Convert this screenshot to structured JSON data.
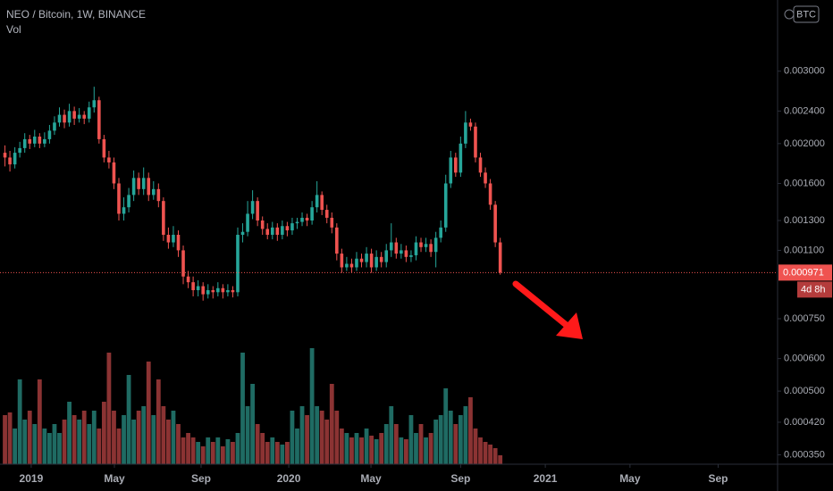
{
  "chart_data": {
    "type": "candlestick",
    "title": "NEO / Bitcoin, 1W, BINANCE",
    "volume_label": "Vol",
    "currency": "BTC",
    "countdown": "4d 8h",
    "last_price": 0.000971,
    "log_scale": true,
    "up_color": "#26a69a",
    "down_color": "#ef5350",
    "volume_up_color": "#1f6b63",
    "volume_down_color": "#8b3333",
    "ylim": [
      0.000332,
      0.00447
    ],
    "yticks": [
      {
        "value": 0.003,
        "label": "0.003000"
      },
      {
        "value": 0.0024,
        "label": "0.002400"
      },
      {
        "value": 0.002,
        "label": "0.002000"
      },
      {
        "value": 0.0016,
        "label": "0.001600"
      },
      {
        "value": 0.0013,
        "label": "0.001300"
      },
      {
        "value": 0.0011,
        "label": "0.001100"
      },
      {
        "value": 0.00075,
        "label": "0.000750"
      },
      {
        "value": 0.0006,
        "label": "0.000600"
      },
      {
        "value": 0.0005,
        "label": "0.000500"
      },
      {
        "value": 0.00042,
        "label": "0.000420"
      },
      {
        "value": 0.00035,
        "label": "0.000350"
      }
    ],
    "xlim": [
      -1,
      156
    ],
    "xticks": [
      {
        "value": 5.3,
        "label": "2019"
      },
      {
        "value": 22.1,
        "label": "May"
      },
      {
        "value": 39.6,
        "label": "Sep"
      },
      {
        "value": 57.3,
        "label": "2020"
      },
      {
        "value": 73.9,
        "label": "May"
      },
      {
        "value": 92,
        "label": "Sep"
      },
      {
        "value": 109.1,
        "label": "2021"
      },
      {
        "value": 126.2,
        "label": "May"
      },
      {
        "value": 144,
        "label": "Sep"
      }
    ],
    "open": [
      0.0019,
      0.00185,
      0.00178,
      0.0019,
      0.00195,
      0.00205,
      0.002,
      0.00208,
      0.002,
      0.00205,
      0.00215,
      0.00225,
      0.00235,
      0.00225,
      0.0024,
      0.0023,
      0.00235,
      0.0023,
      0.00245,
      0.00255,
      0.00205,
      0.00185,
      0.0018,
      0.0016,
      0.00135,
      0.0014,
      0.0015,
      0.00165,
      0.00155,
      0.00165,
      0.0015,
      0.00155,
      0.00145,
      0.0012,
      0.00115,
      0.0012,
      0.0011,
      0.00095,
      0.00092,
      0.00088,
      0.0009,
      0.00086,
      0.00088,
      0.00087,
      0.00089,
      0.00087,
      0.00088,
      0.00087,
      0.0012,
      0.00122,
      0.00135,
      0.00145,
      0.0013,
      0.00124,
      0.0012,
      0.00125,
      0.0012,
      0.00126,
      0.00123,
      0.00128,
      0.00129,
      0.00132,
      0.0013,
      0.0014,
      0.0015,
      0.00138,
      0.00132,
      0.00125,
      0.00108,
      0.001,
      0.00102,
      0.001,
      0.00105,
      0.00103,
      0.00108,
      0.001,
      0.00106,
      0.00103,
      0.0011,
      0.00115,
      0.00108,
      0.0011,
      0.00106,
      0.00107,
      0.00115,
      0.00112,
      0.00114,
      0.00109,
      0.00118,
      0.00125,
      0.0016,
      0.00185,
      0.0017,
      0.002,
      0.00225,
      0.0022,
      0.00185,
      0.0017,
      0.0016,
      0.00142,
      0.00115
    ],
    "high": [
      0.00198,
      0.00192,
      0.00196,
      0.00202,
      0.00212,
      0.0021,
      0.00216,
      0.00212,
      0.00213,
      0.00222,
      0.00233,
      0.00245,
      0.00242,
      0.0025,
      0.00246,
      0.00244,
      0.0024,
      0.00253,
      0.00275,
      0.0026,
      0.0021,
      0.00192,
      0.00185,
      0.00165,
      0.00148,
      0.00156,
      0.00172,
      0.0017,
      0.00175,
      0.0017,
      0.00162,
      0.0016,
      0.00148,
      0.00125,
      0.00126,
      0.00123,
      0.00113,
      0.00098,
      0.00095,
      0.00093,
      0.00092,
      0.00091,
      0.0009,
      0.00092,
      0.00091,
      0.00091,
      0.0009,
      0.00125,
      0.00128,
      0.00145,
      0.00154,
      0.00148,
      0.00133,
      0.00128,
      0.00129,
      0.00128,
      0.0013,
      0.00129,
      0.00132,
      0.00132,
      0.00136,
      0.00135,
      0.00145,
      0.00162,
      0.00153,
      0.00142,
      0.00136,
      0.00128,
      0.00111,
      0.00106,
      0.00105,
      0.00109,
      0.00108,
      0.00112,
      0.00111,
      0.0011,
      0.00109,
      0.00114,
      0.00128,
      0.00118,
      0.00114,
      0.00113,
      0.0011,
      0.00119,
      0.00118,
      0.00118,
      0.00117,
      0.00122,
      0.0013,
      0.00168,
      0.00192,
      0.0019,
      0.00208,
      0.0024,
      0.0023,
      0.00225,
      0.0019,
      0.00175,
      0.00164,
      0.00145,
      0.00118
    ],
    "low": [
      0.00176,
      0.00171,
      0.00174,
      0.00185,
      0.0019,
      0.00194,
      0.00196,
      0.00195,
      0.00196,
      0.002,
      0.0021,
      0.0022,
      0.00218,
      0.0022,
      0.00222,
      0.00225,
      0.00223,
      0.00225,
      0.00238,
      0.002,
      0.0018,
      0.00174,
      0.00155,
      0.0013,
      0.0013,
      0.00136,
      0.00145,
      0.0015,
      0.0015,
      0.00145,
      0.00146,
      0.0014,
      0.00116,
      0.00111,
      0.00112,
      0.00106,
      0.00091,
      0.00089,
      0.00085,
      0.00085,
      0.00083,
      0.00084,
      0.00084,
      0.00085,
      0.00084,
      0.00085,
      0.000845,
      0.00085,
      0.00115,
      0.00119,
      0.00131,
      0.00126,
      0.0012,
      0.00117,
      0.00117,
      0.00116,
      0.00117,
      0.00119,
      0.0012,
      0.00124,
      0.00126,
      0.00126,
      0.00127,
      0.00136,
      0.00134,
      0.00128,
      0.00121,
      0.00104,
      0.00097,
      0.00098,
      0.00097,
      0.00098,
      0.001,
      0.001,
      0.00097,
      0.00098,
      0.001,
      0.001,
      0.00106,
      0.00105,
      0.00105,
      0.00103,
      0.00103,
      0.00104,
      0.00109,
      0.00109,
      0.00106,
      0.001,
      0.00115,
      0.00122,
      0.00156,
      0.00166,
      0.00166,
      0.00195,
      0.00215,
      0.0018,
      0.00166,
      0.00156,
      0.00138,
      0.00112,
      0.00096
    ],
    "close": [
      0.00185,
      0.00178,
      0.0019,
      0.00195,
      0.00205,
      0.002,
      0.00208,
      0.002,
      0.00205,
      0.00215,
      0.00225,
      0.00235,
      0.00225,
      0.0024,
      0.0023,
      0.00235,
      0.0023,
      0.00245,
      0.00255,
      0.00205,
      0.00185,
      0.0018,
      0.0016,
      0.00135,
      0.0014,
      0.0015,
      0.00165,
      0.00155,
      0.00165,
      0.0015,
      0.00155,
      0.00145,
      0.0012,
      0.00115,
      0.0012,
      0.0011,
      0.00095,
      0.00092,
      0.00088,
      0.0009,
      0.00086,
      0.00088,
      0.00087,
      0.00089,
      0.00087,
      0.00088,
      0.00087,
      0.0012,
      0.00122,
      0.00135,
      0.00145,
      0.0013,
      0.00124,
      0.0012,
      0.00125,
      0.0012,
      0.00126,
      0.00123,
      0.00128,
      0.00129,
      0.00132,
      0.0013,
      0.0014,
      0.0015,
      0.00138,
      0.00132,
      0.00125,
      0.00108,
      0.001,
      0.00102,
      0.001,
      0.00105,
      0.00103,
      0.00108,
      0.001,
      0.00106,
      0.00103,
      0.0011,
      0.00115,
      0.00108,
      0.0011,
      0.00106,
      0.00107,
      0.00115,
      0.00112,
      0.00114,
      0.00109,
      0.00118,
      0.00125,
      0.0016,
      0.00185,
      0.0017,
      0.002,
      0.00225,
      0.0022,
      0.00185,
      0.0017,
      0.0016,
      0.00142,
      0.00115,
      0.000971
    ],
    "volume": [
      55,
      58,
      40,
      95,
      50,
      60,
      45,
      95,
      40,
      35,
      45,
      35,
      50,
      70,
      55,
      50,
      60,
      45,
      60,
      40,
      70,
      125,
      60,
      40,
      55,
      100,
      50,
      60,
      65,
      115,
      55,
      95,
      65,
      50,
      60,
      45,
      30,
      35,
      30,
      25,
      20,
      30,
      25,
      30,
      20,
      28,
      25,
      35,
      125,
      65,
      90,
      45,
      35,
      25,
      30,
      25,
      22,
      25,
      60,
      40,
      65,
      55,
      130,
      65,
      60,
      50,
      90,
      60,
      40,
      35,
      30,
      35,
      30,
      40,
      32,
      28,
      35,
      45,
      65,
      45,
      30,
      28,
      55,
      35,
      45,
      30,
      35,
      50,
      55,
      85,
      60,
      45,
      55,
      65,
      75,
      40,
      30,
      25,
      22,
      18,
      10
    ]
  }
}
